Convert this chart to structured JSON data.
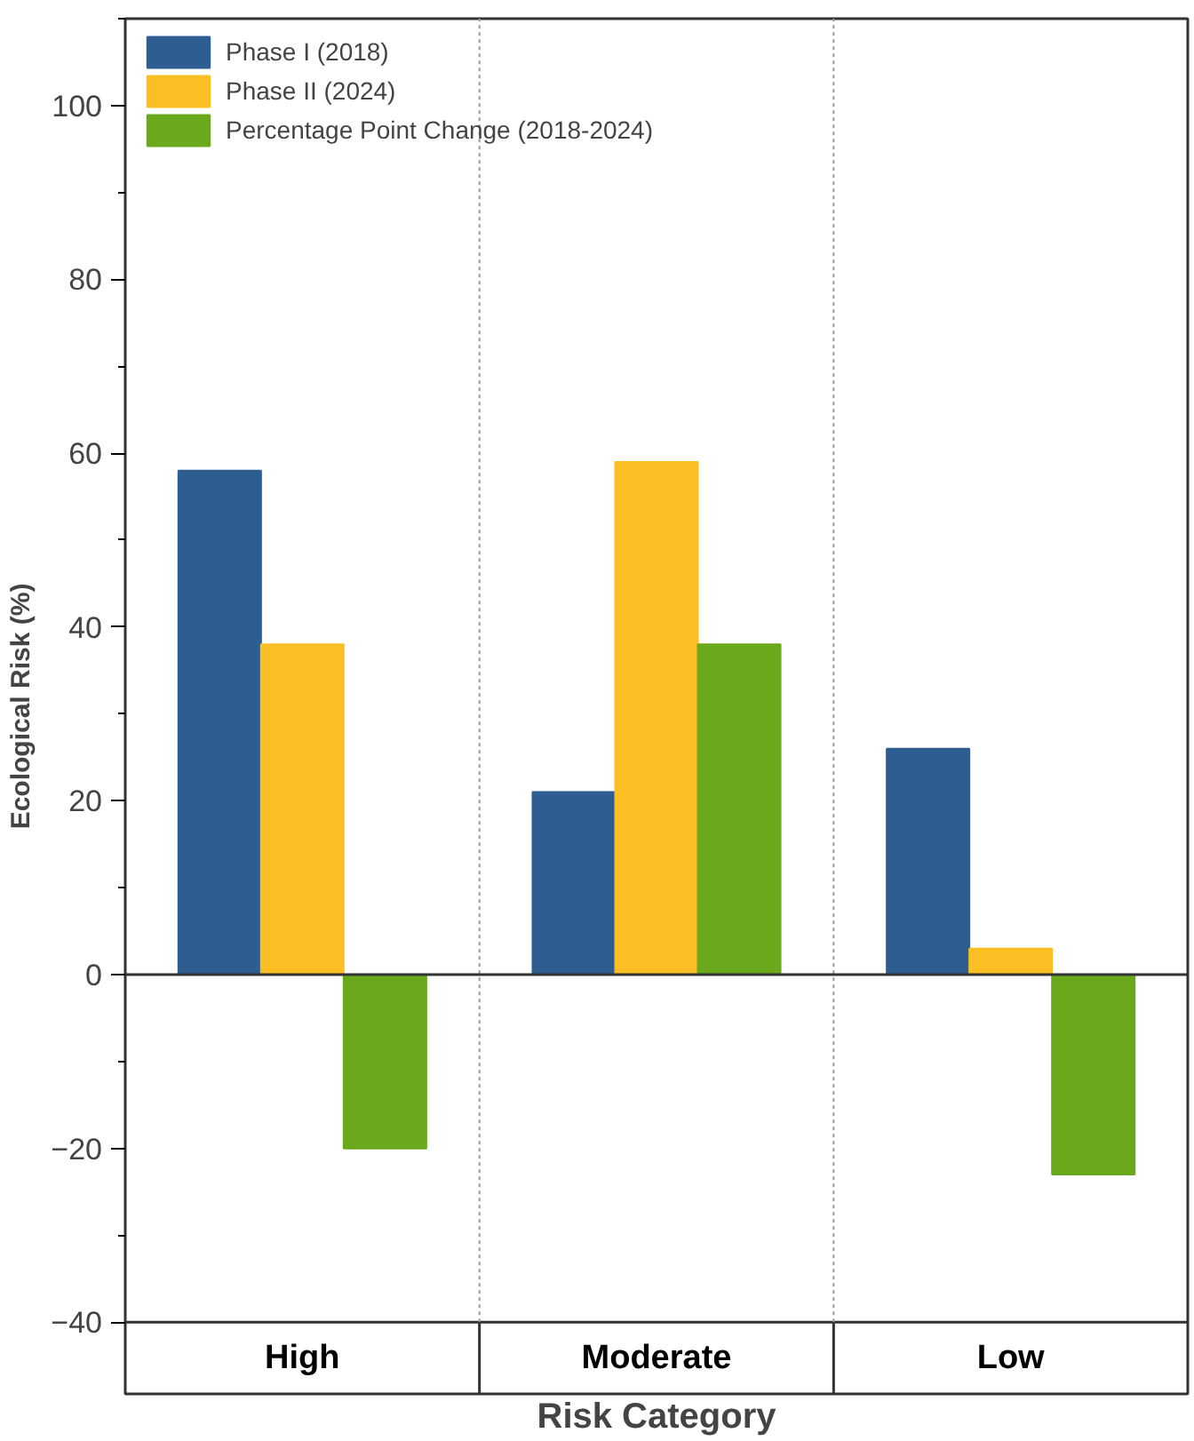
{
  "chart_data": {
    "type": "bar",
    "xlabel": "Risk Category",
    "ylabel": "Ecological Risk (%)",
    "categories": [
      "High",
      "Moderate",
      "Low"
    ],
    "series": [
      {
        "name": "Phase I (2018)",
        "color": "#2e5e91",
        "values": [
          58,
          21,
          26
        ]
      },
      {
        "name": "Phase II (2024)",
        "color": "#fbbf24",
        "values": [
          38,
          59,
          3
        ]
      },
      {
        "name": "Percentage Point Change (2018-2024)",
        "color": "#6aa81c",
        "values": [
          -20,
          38,
          -23
        ]
      }
    ],
    "ylim": [
      -40,
      110
    ],
    "yticks": [
      -40,
      -20,
      0,
      20,
      40,
      60,
      80,
      100
    ],
    "legend": "top left"
  }
}
